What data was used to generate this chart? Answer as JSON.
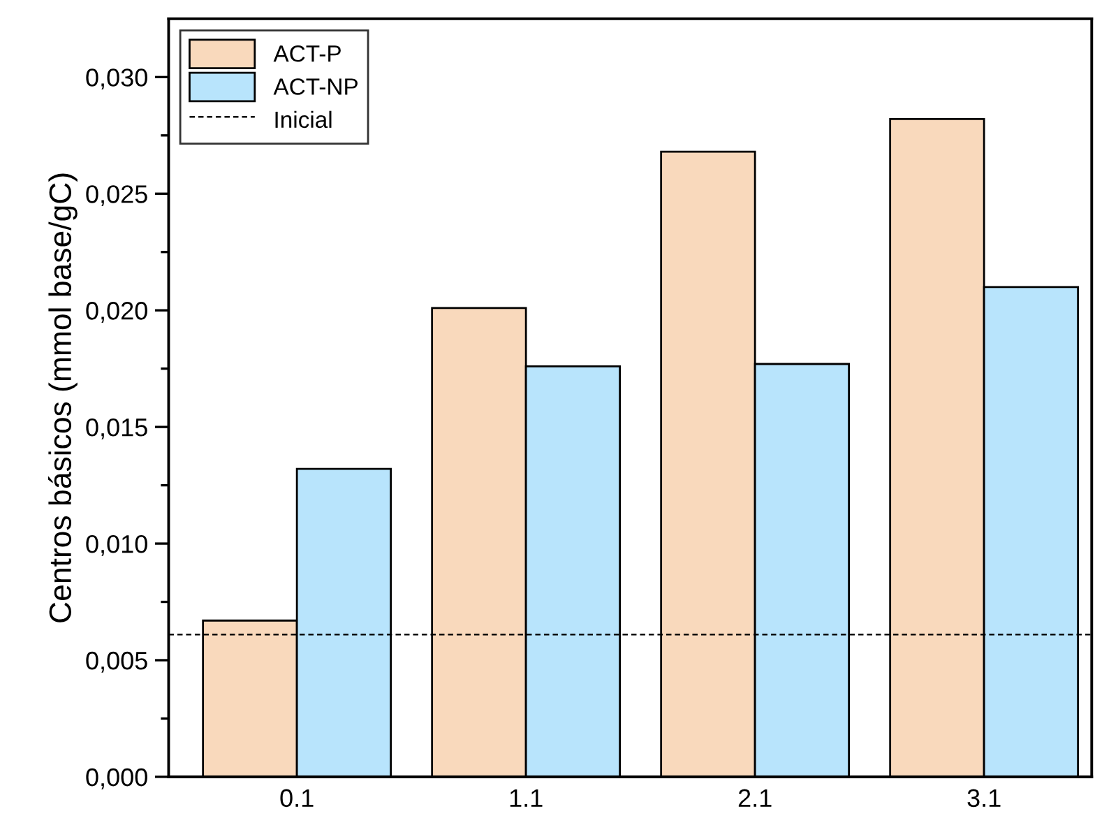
{
  "chart_data": {
    "type": "bar",
    "ylabel": "Centros básicos (mmol base/gC)",
    "categories": [
      "0.1",
      "1.1",
      "2.1",
      "3.1"
    ],
    "series": [
      {
        "name": "ACT-P",
        "color": "#f9d9bc",
        "values": [
          0.0067,
          0.0201,
          0.0268,
          0.0282
        ]
      },
      {
        "name": "ACT-NP",
        "color": "#b8e4fc",
        "values": [
          0.0132,
          0.0176,
          0.0177,
          0.021
        ]
      }
    ],
    "ref_lines": [
      {
        "axis": "y",
        "value": 0.0061,
        "label": "Inicial",
        "color": "#000000",
        "line_style": "dashed"
      }
    ],
    "ylim": [
      0,
      0.0325
    ],
    "yticks": [
      {
        "value": 0,
        "label": "0,000"
      },
      {
        "value": 0.005,
        "label": "0,005"
      },
      {
        "value": 0.01,
        "label": "0,010"
      },
      {
        "value": 0.015,
        "label": "0,015"
      },
      {
        "value": 0.02,
        "label": "0,020"
      },
      {
        "value": 0.025,
        "label": "0,025"
      },
      {
        "value": 0.03,
        "label": "0,030"
      }
    ],
    "grid": false,
    "legend": "top left"
  }
}
